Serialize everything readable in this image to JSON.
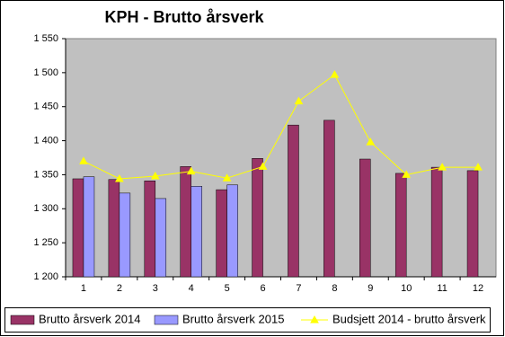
{
  "chart_data": {
    "type": "bar-line",
    "title": "KPH - Brutto årsverk",
    "categories": [
      "1",
      "2",
      "3",
      "4",
      "5",
      "6",
      "7",
      "8",
      "9",
      "10",
      "11",
      "12"
    ],
    "series": [
      {
        "name": "Brutto årsverk 2014",
        "type": "bar",
        "color": "#993366",
        "values": [
          1344,
          1343,
          1341,
          1362,
          1328,
          1374,
          1423,
          1430,
          1373,
          1352,
          1361,
          1356
        ]
      },
      {
        "name": "Brutto årsverk 2015",
        "type": "bar",
        "color": "#9999ff",
        "values": [
          1347,
          1323,
          1315,
          1333,
          1335,
          null,
          null,
          null,
          null,
          null,
          null,
          null
        ]
      },
      {
        "name": "Budsjett 2014 - brutto årsverk",
        "type": "line",
        "color": "#ffff00",
        "values": [
          1370,
          1344,
          1348,
          1355,
          1345,
          1362,
          1458,
          1497,
          1398,
          1350,
          1361,
          1361
        ]
      }
    ],
    "ylim": [
      1200,
      1550
    ],
    "yticks": [
      {
        "value": 1200,
        "label": "1 200"
      },
      {
        "value": 1250,
        "label": "1 250"
      },
      {
        "value": 1300,
        "label": "1 300"
      },
      {
        "value": 1350,
        "label": "1 350"
      },
      {
        "value": 1400,
        "label": "1 400"
      },
      {
        "value": 1450,
        "label": "1 450"
      },
      {
        "value": 1500,
        "label": "1 500"
      },
      {
        "value": 1550,
        "label": "1 550"
      }
    ],
    "grid": false,
    "legend": "bottom",
    "plot_background": "#c0c0c0"
  }
}
